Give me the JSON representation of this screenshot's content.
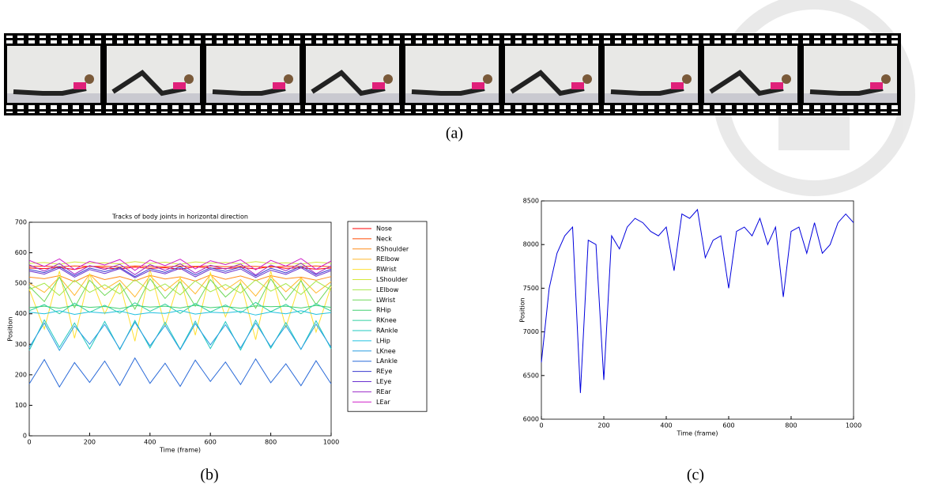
{
  "captions": [
    "(a)",
    "(b)",
    "(c)"
  ],
  "chart_data": [
    {
      "type": "line",
      "title": "Tracks of body joints in horizontal direction",
      "x_label": "Time (frame)",
      "y_label": "Position",
      "xlim": [
        0,
        1000
      ],
      "ylim": [
        0,
        700
      ],
      "xticks": [
        0,
        200,
        400,
        600,
        800,
        1000
      ],
      "yticks": [
        0,
        100,
        200,
        300,
        400,
        500,
        600,
        700
      ],
      "legend": "outside-right",
      "x": [
        0,
        50,
        100,
        150,
        200,
        250,
        300,
        350,
        400,
        450,
        500,
        550,
        600,
        650,
        700,
        750,
        800,
        850,
        900,
        950,
        1000
      ],
      "series": [
        {
          "name": "Nose",
          "color": "#ff0000",
          "values": [
            550,
            548,
            552,
            545,
            556,
            550,
            547,
            553,
            549,
            551,
            546,
            554,
            550,
            548,
            552,
            547,
            555,
            549,
            551,
            546,
            550
          ]
        },
        {
          "name": "Neck",
          "color": "#ff4a00",
          "values": [
            555,
            556,
            554,
            557,
            555,
            556,
            553,
            557,
            555,
            554,
            556,
            555,
            557,
            554,
            556,
            555,
            553,
            556,
            555,
            557,
            554
          ]
        },
        {
          "name": "RShoulder",
          "color": "#ff8c1a",
          "values": [
            520,
            515,
            525,
            505,
            528,
            512,
            522,
            508,
            526,
            514,
            521,
            507,
            527,
            513,
            524,
            509,
            525,
            515,
            520,
            510,
            522
          ]
        },
        {
          "name": "RElbow",
          "color": "#ffb830",
          "values": [
            500,
            470,
            520,
            460,
            530,
            480,
            510,
            455,
            525,
            475,
            515,
            465,
            528,
            478,
            512,
            458,
            522,
            472,
            518,
            468,
            505
          ]
        },
        {
          "name": "RWrist",
          "color": "#ffe033",
          "values": [
            480,
            350,
            540,
            320,
            530,
            400,
            500,
            310,
            545,
            360,
            520,
            330,
            535,
            390,
            505,
            315,
            540,
            355,
            515,
            340,
            490
          ]
        },
        {
          "name": "LShoulder",
          "color": "#d4e83a",
          "values": [
            565,
            568,
            562,
            570,
            566,
            567,
            563,
            571,
            565,
            569,
            562,
            570,
            566,
            568,
            564,
            571,
            565,
            567,
            563,
            569,
            566
          ]
        },
        {
          "name": "LElbow",
          "color": "#a6e84a",
          "values": [
            480,
            500,
            460,
            510,
            470,
            495,
            465,
            512,
            475,
            498,
            462,
            508,
            472,
            496,
            468,
            511,
            474,
            499,
            463,
            507,
            478
          ]
        },
        {
          "name": "LWrist",
          "color": "#6fd85a",
          "values": [
            490,
            440,
            520,
            420,
            510,
            460,
            500,
            415,
            515,
            450,
            505,
            425,
            512,
            455,
            498,
            418,
            514,
            445,
            508,
            430,
            495
          ]
        },
        {
          "name": "RHip",
          "color": "#40d070",
          "values": [
            420,
            425,
            418,
            428,
            421,
            424,
            417,
            427,
            422,
            425,
            419,
            428,
            420,
            424,
            418,
            426,
            423,
            425,
            419,
            427,
            421
          ]
        },
        {
          "name": "RKnee",
          "color": "#30d0a0",
          "values": [
            410,
            430,
            400,
            435,
            405,
            428,
            402,
            436,
            408,
            432,
            401,
            434,
            406,
            429,
            403,
            437,
            407,
            431,
            400,
            433,
            409
          ]
        },
        {
          "name": "RAnkle",
          "color": "#20c8c0",
          "values": [
            280,
            380,
            290,
            370,
            285,
            375,
            282,
            378,
            288,
            372,
            284,
            376,
            286,
            374,
            281,
            379,
            287,
            371,
            283,
            377,
            285
          ]
        },
        {
          "name": "LHip",
          "color": "#20c0e0",
          "values": [
            405,
            400,
            410,
            398,
            406,
            402,
            409,
            397,
            404,
            401,
            411,
            399,
            405,
            403,
            408,
            396,
            406,
            400,
            410,
            398,
            404
          ]
        },
        {
          "name": "LKnee",
          "color": "#2a9ee0",
          "values": [
            290,
            370,
            280,
            360,
            300,
            365,
            285,
            372,
            295,
            362,
            282,
            368,
            298,
            364,
            288,
            370,
            292,
            361,
            284,
            366,
            290
          ]
        },
        {
          "name": "LAnkle",
          "color": "#2a6ad8",
          "values": [
            170,
            250,
            160,
            240,
            175,
            245,
            165,
            255,
            172,
            238,
            162,
            248,
            178,
            242,
            168,
            252,
            174,
            236,
            164,
            246,
            170
          ]
        },
        {
          "name": "REye",
          "color": "#3a3ad0",
          "values": [
            545,
            535,
            555,
            525,
            550,
            538,
            552,
            522,
            548,
            536,
            554,
            527,
            551,
            539,
            553,
            524,
            549,
            534,
            556,
            528,
            546
          ]
        },
        {
          "name": "LEye",
          "color": "#6a30d0",
          "values": [
            540,
            530,
            550,
            520,
            545,
            532,
            548,
            518,
            542,
            531,
            549,
            521,
            546,
            533,
            547,
            519,
            543,
            529,
            551,
            523,
            541
          ]
        },
        {
          "name": "REar",
          "color": "#9a28c8",
          "values": [
            560,
            540,
            565,
            530,
            558,
            545,
            562,
            528,
            561,
            542,
            564,
            533,
            559,
            546,
            563,
            527,
            560,
            541,
            566,
            531,
            557
          ]
        },
        {
          "name": "LEar",
          "color": "#d020c8",
          "values": [
            575,
            555,
            580,
            545,
            572,
            560,
            578,
            542,
            576,
            558,
            579,
            547,
            574,
            561,
            577,
            544,
            575,
            556,
            581,
            546,
            573
          ]
        }
      ]
    },
    {
      "type": "line",
      "x_label": "Time (frame)",
      "y_label": "Position",
      "xlim": [
        0,
        1000
      ],
      "ylim": [
        6000,
        8500
      ],
      "xticks": [
        0,
        200,
        400,
        600,
        800,
        1000
      ],
      "yticks": [
        6000,
        6500,
        7000,
        7500,
        8000,
        8500
      ],
      "x": [
        0,
        25,
        50,
        75,
        100,
        125,
        150,
        175,
        200,
        225,
        250,
        275,
        300,
        325,
        350,
        375,
        400,
        425,
        450,
        475,
        500,
        525,
        550,
        575,
        600,
        625,
        650,
        675,
        700,
        725,
        750,
        775,
        800,
        825,
        850,
        875,
        900,
        925,
        950,
        975,
        1000
      ],
      "series": [
        {
          "color": "#0000dd",
          "values": [
            6650,
            7500,
            7900,
            8100,
            8200,
            6300,
            8050,
            8000,
            6450,
            8100,
            7950,
            8200,
            8300,
            8250,
            8150,
            8100,
            8200,
            7700,
            8350,
            8300,
            8400,
            7850,
            8050,
            8100,
            7500,
            8150,
            8200,
            8100,
            8300,
            8000,
            8200,
            7400,
            8150,
            8200,
            7900,
            8250,
            7900,
            8000,
            8250,
            8350,
            8250
          ]
        }
      ]
    }
  ]
}
